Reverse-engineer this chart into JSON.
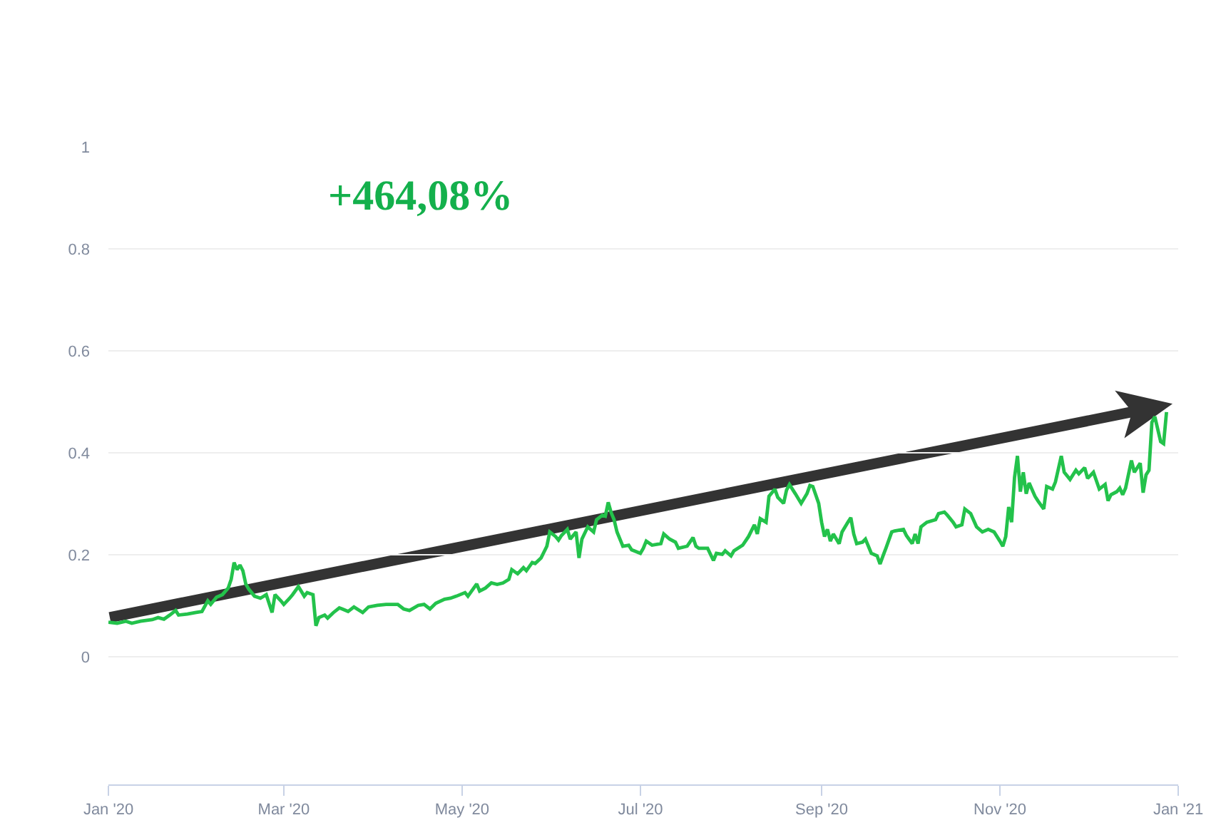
{
  "chart_data": {
    "type": "line",
    "annotations": [
      "+464,08%"
    ],
    "xlim": [
      "2020-01-01",
      "2021-01-01"
    ],
    "xticks": [
      {
        "value": "2020-01-01",
        "label": "Jan '20"
      },
      {
        "value": "2020-03-01",
        "label": "Mar '20"
      },
      {
        "value": "2020-05-01",
        "label": "May '20"
      },
      {
        "value": "2020-07-01",
        "label": "Jul '20"
      },
      {
        "value": "2020-09-01",
        "label": "Sep '20"
      },
      {
        "value": "2020-11-01",
        "label": "Nov '20"
      },
      {
        "value": "2021-01-01",
        "label": "Jan '21"
      }
    ],
    "ylim": [
      -0.25,
      1
    ],
    "yticks": [
      0,
      0.2,
      0.4,
      0.6,
      0.8,
      1
    ],
    "grid": "y",
    "series": [
      {
        "color": "#23c24b",
        "x": [
          "2020-01-01",
          "2020-01-04",
          "2020-01-07",
          "2020-01-09",
          "2020-01-12",
          "2020-01-16",
          "2020-01-18",
          "2020-01-20",
          "2020-01-22",
          "2020-01-24",
          "2020-01-25",
          "2020-01-28",
          "2020-01-31",
          "2020-02-02",
          "2020-02-04",
          "2020-02-05",
          "2020-02-07",
          "2020-02-09",
          "2020-02-11",
          "2020-02-12",
          "2020-02-13",
          "2020-02-14",
          "2020-02-15",
          "2020-02-16",
          "2020-02-17",
          "2020-02-18",
          "2020-02-20",
          "2020-02-22",
          "2020-02-24",
          "2020-02-26",
          "2020-02-27",
          "2020-02-29",
          "2020-03-01",
          "2020-03-03",
          "2020-03-04",
          "2020-03-06",
          "2020-03-08",
          "2020-03-09",
          "2020-03-11",
          "2020-03-12",
          "2020-03-13",
          "2020-03-15",
          "2020-03-16",
          "2020-03-18",
          "2020-03-20",
          "2020-03-21",
          "2020-03-23",
          "2020-03-25",
          "2020-03-28",
          "2020-03-30",
          "2020-04-02",
          "2020-04-05",
          "2020-04-09",
          "2020-04-11",
          "2020-04-13",
          "2020-04-16",
          "2020-04-18",
          "2020-04-20",
          "2020-04-22",
          "2020-04-25",
          "2020-04-27",
          "2020-04-29",
          "2020-05-02",
          "2020-05-03",
          "2020-05-06",
          "2020-05-07",
          "2020-05-09",
          "2020-05-11",
          "2020-05-13",
          "2020-05-15",
          "2020-05-17",
          "2020-05-18",
          "2020-05-20",
          "2020-05-22",
          "2020-05-23",
          "2020-05-25",
          "2020-05-26",
          "2020-05-28",
          "2020-05-30",
          "2020-05-31",
          "2020-06-02",
          "2020-06-03",
          "2020-06-04",
          "2020-06-06",
          "2020-06-07",
          "2020-06-09",
          "2020-06-10",
          "2020-06-11",
          "2020-06-13",
          "2020-06-15",
          "2020-06-16",
          "2020-06-18",
          "2020-06-19",
          "2020-06-20",
          "2020-06-21",
          "2020-06-22",
          "2020-06-23",
          "2020-06-25",
          "2020-06-27",
          "2020-06-28",
          "2020-07-01",
          "2020-07-02",
          "2020-07-03",
          "2020-07-05",
          "2020-07-08",
          "2020-07-09",
          "2020-07-11",
          "2020-07-13",
          "2020-07-14",
          "2020-07-17",
          "2020-07-19",
          "2020-07-20",
          "2020-07-21",
          "2020-07-24",
          "2020-07-26",
          "2020-07-27",
          "2020-07-29",
          "2020-07-30",
          "2020-08-01",
          "2020-08-02",
          "2020-08-05",
          "2020-08-07",
          "2020-08-09",
          "2020-08-10",
          "2020-08-11",
          "2020-08-13",
          "2020-08-14",
          "2020-08-16",
          "2020-08-17",
          "2020-08-19",
          "2020-08-20",
          "2020-08-21",
          "2020-08-23",
          "2020-08-25",
          "2020-08-27",
          "2020-08-28",
          "2020-08-29",
          "2020-08-31",
          "2020-09-01",
          "2020-09-02",
          "2020-09-03",
          "2020-09-04",
          "2020-09-05",
          "2020-09-07",
          "2020-09-08",
          "2020-09-10",
          "2020-09-11",
          "2020-09-12",
          "2020-09-13",
          "2020-09-15",
          "2020-09-16",
          "2020-09-18",
          "2020-09-20",
          "2020-09-21",
          "2020-09-22",
          "2020-09-23",
          "2020-09-25",
          "2020-09-26",
          "2020-09-29",
          "2020-09-30",
          "2020-10-02",
          "2020-10-03",
          "2020-10-04",
          "2020-10-05",
          "2020-10-07",
          "2020-10-10",
          "2020-10-11",
          "2020-10-13",
          "2020-10-14",
          "2020-10-16",
          "2020-10-17",
          "2020-10-19",
          "2020-10-20",
          "2020-10-22",
          "2020-10-24",
          "2020-10-26",
          "2020-10-28",
          "2020-10-30",
          "2020-11-01",
          "2020-11-02",
          "2020-11-03",
          "2020-11-04",
          "2020-11-05",
          "2020-11-06",
          "2020-11-07",
          "2020-11-08",
          "2020-11-09",
          "2020-11-10",
          "2020-11-11",
          "2020-11-13",
          "2020-11-14",
          "2020-11-16",
          "2020-11-17",
          "2020-11-19",
          "2020-11-20",
          "2020-11-22",
          "2020-11-23",
          "2020-11-25",
          "2020-11-27",
          "2020-11-28",
          "2020-11-30",
          "2020-12-01",
          "2020-12-03",
          "2020-12-05",
          "2020-12-07",
          "2020-12-08",
          "2020-12-09",
          "2020-12-11",
          "2020-12-12",
          "2020-12-13",
          "2020-12-14",
          "2020-12-16",
          "2020-12-17",
          "2020-12-19",
          "2020-12-20",
          "2020-12-21",
          "2020-12-22",
          "2020-12-23",
          "2020-12-24",
          "2020-12-26",
          "2020-12-27",
          "2020-12-28"
        ],
        "values": [
          0.068,
          0.066,
          0.07,
          0.066,
          0.07,
          0.073,
          0.077,
          0.074,
          0.082,
          0.091,
          0.082,
          0.084,
          0.087,
          0.089,
          0.11,
          0.103,
          0.117,
          0.122,
          0.135,
          0.152,
          0.185,
          0.171,
          0.18,
          0.169,
          0.143,
          0.133,
          0.119,
          0.115,
          0.122,
          0.087,
          0.122,
          0.11,
          0.103,
          0.115,
          0.122,
          0.138,
          0.119,
          0.126,
          0.122,
          0.061,
          0.077,
          0.082,
          0.076,
          0.087,
          0.096,
          0.094,
          0.089,
          0.098,
          0.087,
          0.098,
          0.101,
          0.103,
          0.103,
          0.094,
          0.091,
          0.101,
          0.103,
          0.094,
          0.105,
          0.113,
          0.115,
          0.119,
          0.126,
          0.119,
          0.143,
          0.129,
          0.135,
          0.145,
          0.142,
          0.145,
          0.152,
          0.171,
          0.163,
          0.175,
          0.169,
          0.185,
          0.183,
          0.194,
          0.217,
          0.245,
          0.236,
          0.229,
          0.238,
          0.25,
          0.231,
          0.245,
          0.194,
          0.231,
          0.255,
          0.245,
          0.269,
          0.278,
          0.276,
          0.303,
          0.283,
          0.269,
          0.245,
          0.217,
          0.219,
          0.21,
          0.203,
          0.213,
          0.227,
          0.219,
          0.222,
          0.241,
          0.231,
          0.225,
          0.213,
          0.217,
          0.234,
          0.217,
          0.213,
          0.213,
          0.189,
          0.203,
          0.201,
          0.208,
          0.198,
          0.208,
          0.219,
          0.236,
          0.259,
          0.241,
          0.271,
          0.264,
          0.315,
          0.329,
          0.313,
          0.301,
          0.327,
          0.338,
          0.32,
          0.301,
          0.32,
          0.336,
          0.334,
          0.301,
          0.264,
          0.236,
          0.25,
          0.227,
          0.241,
          0.222,
          0.245,
          0.264,
          0.273,
          0.241,
          0.222,
          0.225,
          0.231,
          0.203,
          0.198,
          0.182,
          0.198,
          0.213,
          0.245,
          0.247,
          0.25,
          0.238,
          0.222,
          0.241,
          0.222,
          0.255,
          0.264,
          0.269,
          0.281,
          0.284,
          0.278,
          0.264,
          0.255,
          0.259,
          0.29,
          0.281,
          0.255,
          0.245,
          0.25,
          0.245,
          0.227,
          0.217,
          0.236,
          0.294,
          0.264,
          0.352,
          0.394,
          0.324,
          0.362,
          0.32,
          0.341,
          0.315,
          0.306,
          0.29,
          0.334,
          0.329,
          0.343,
          0.394,
          0.362,
          0.348,
          0.366,
          0.359,
          0.371,
          0.35,
          0.362,
          0.329,
          0.338,
          0.306,
          0.318,
          0.324,
          0.331,
          0.318,
          0.331,
          0.385,
          0.362,
          0.38,
          0.322,
          0.357,
          0.366,
          0.46,
          0.471,
          0.422,
          0.418,
          0.48
        ]
      }
    ]
  }
}
